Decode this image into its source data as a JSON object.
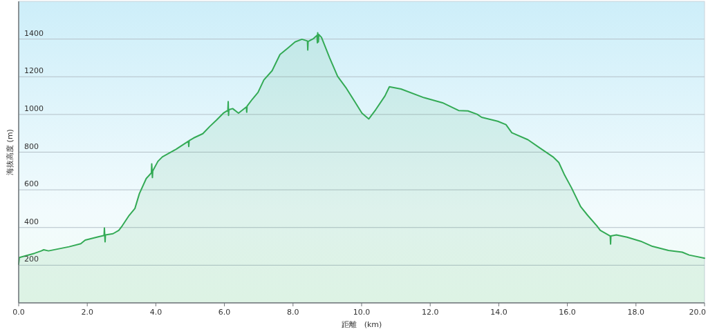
{
  "chart_data": {
    "type": "area",
    "xlabel": "距離　(km)",
    "ylabel": "海抜高度 (m)",
    "color": "#33aa55",
    "grid": "y",
    "xlim": [
      0,
      20
    ],
    "ylim": [
      0,
      1600
    ],
    "xticks": [
      {
        "value": 0,
        "label": "0.0"
      },
      {
        "value": 2,
        "label": "2.0"
      },
      {
        "value": 4,
        "label": "4.0"
      },
      {
        "value": 6,
        "label": "6.0"
      },
      {
        "value": 8,
        "label": "8.0"
      },
      {
        "value": 10,
        "label": "10.0"
      },
      {
        "value": 12,
        "label": "12.0"
      },
      {
        "value": 14,
        "label": "14.0"
      },
      {
        "value": 16,
        "label": "16.0"
      },
      {
        "value": 18,
        "label": "18.0"
      },
      {
        "value": 20,
        "label": "20.0"
      }
    ],
    "yticks": [
      200,
      400,
      600,
      800,
      1000,
      1200,
      1400
    ],
    "x": [
      0,
      0.02,
      0.46,
      0.66,
      0.73,
      0.87,
      1.47,
      1.81,
      1.94,
      2.28,
      2.49,
      2.5,
      2.52,
      2.53,
      2.75,
      2.92,
      3.02,
      3.22,
      3.39,
      3.52,
      3.72,
      3.87,
      3.88,
      3.9,
      3.91,
      4.06,
      4.19,
      4.56,
      4.95,
      4.96,
      4.97,
      5.1,
      5.37,
      5.57,
      5.77,
      5.97,
      6.1,
      6.11,
      6.12,
      6.13,
      6.24,
      6.41,
      6.64,
      6.65,
      6.66,
      6.81,
      6.98,
      7.15,
      7.39,
      7.62,
      7.86,
      8.06,
      8.26,
      8.42,
      8.43,
      8.44,
      8.6,
      8.7,
      8.71,
      8.72,
      8.74,
      8.75,
      8.83,
      9.07,
      9.3,
      9.54,
      9.8,
      10.01,
      10.21,
      10.41,
      10.68,
      10.81,
      11.15,
      11.82,
      12.36,
      12.83,
      13.1,
      13.37,
      13.5,
      13.97,
      14.21,
      14.38,
      14.85,
      15.18,
      15.58,
      15.75,
      15.92,
      16.12,
      16.39,
      16.59,
      16.86,
      16.96,
      17.25,
      17.26,
      17.27,
      17.43,
      17.74,
      18.14,
      18.48,
      18.95,
      19.35,
      19.55,
      20
    ],
    "values": [
      205,
      241,
      263,
      276,
      282,
      276,
      298,
      314,
      333,
      349,
      358,
      397,
      324,
      361,
      367,
      385,
      409,
      464,
      501,
      580,
      660,
      690,
      738,
      665,
      700,
      751,
      775,
      812,
      858,
      830,
      861,
      875,
      898,
      936,
      970,
      1007,
      1022,
      1068,
      995,
      1025,
      1031,
      1007,
      1040,
      1012,
      1044,
      1080,
      1117,
      1183,
      1232,
      1318,
      1354,
      1385,
      1399,
      1390,
      1342,
      1387,
      1403,
      1420,
      1380,
      1433,
      1385,
      1424,
      1409,
      1299,
      1202,
      1143,
      1068,
      1007,
      976,
      1025,
      1098,
      1147,
      1135,
      1089,
      1062,
      1021,
      1019,
      1001,
      985,
      964,
      946,
      903,
      866,
      824,
      775,
      745,
      678,
      611,
      510,
      465,
      409,
      385,
      355,
      312,
      355,
      361,
      349,
      327,
      300,
      278,
      269,
      254,
      237
    ]
  }
}
